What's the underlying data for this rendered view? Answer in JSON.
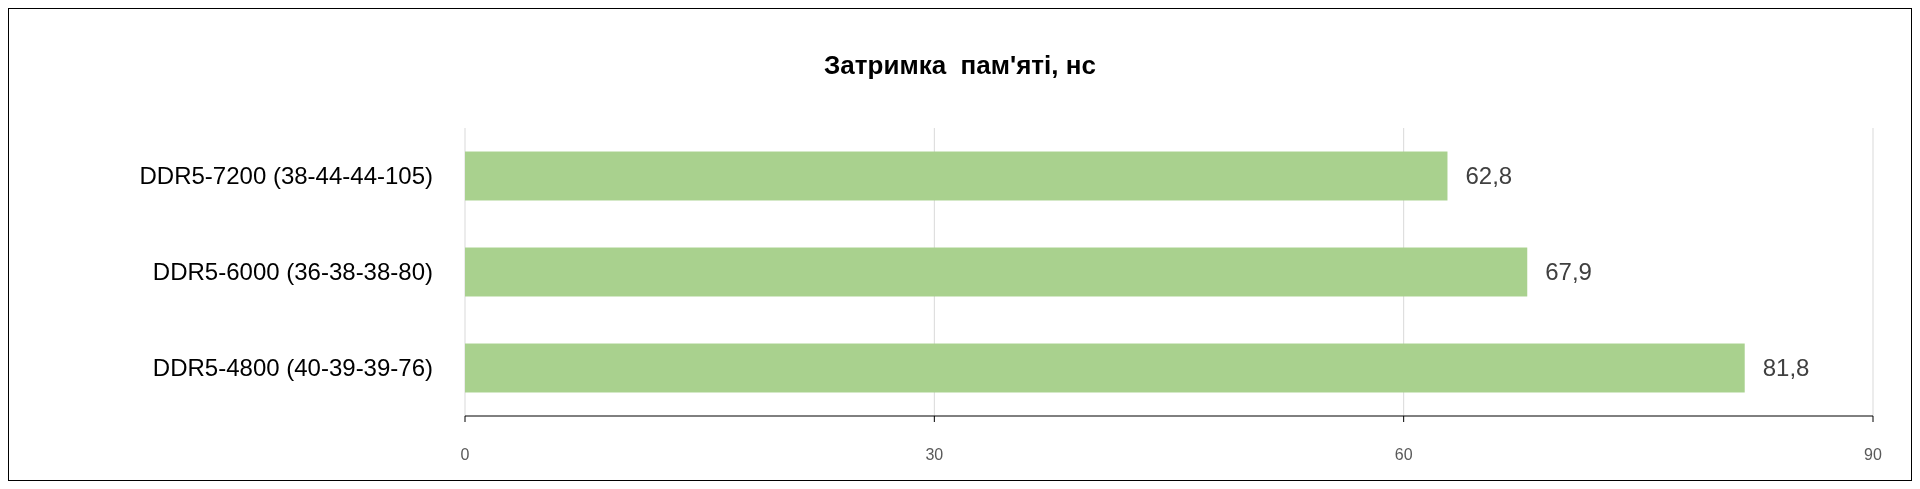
{
  "chart_data": {
    "type": "bar",
    "orientation": "horizontal",
    "title": "Затримка  пам'яті, нс",
    "categories": [
      "DDR5-7200 (38-44-44-105)",
      "DDR5-6000 (36-38-38-80)",
      "DDR5-4800 (40-39-39-76)"
    ],
    "values": [
      62.8,
      67.9,
      81.8
    ],
    "value_labels": [
      "62,8",
      "67,9",
      "81,8"
    ],
    "color": "#a9d18e",
    "xlim": [
      0,
      90
    ],
    "xticks": [
      0,
      30,
      60,
      90
    ],
    "grid": "x"
  }
}
